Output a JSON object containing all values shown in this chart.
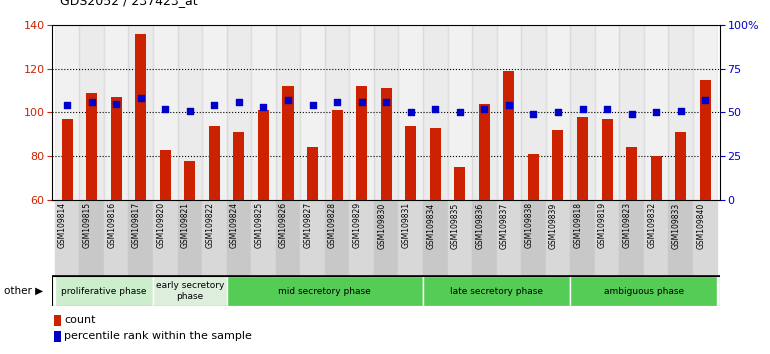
{
  "title": "GDS2052 / 237423_at",
  "samples": [
    "GSM109814",
    "GSM109815",
    "GSM109816",
    "GSM109817",
    "GSM109820",
    "GSM109821",
    "GSM109822",
    "GSM109824",
    "GSM109825",
    "GSM109826",
    "GSM109827",
    "GSM109828",
    "GSM109829",
    "GSM109830",
    "GSM109831",
    "GSM109834",
    "GSM109835",
    "GSM109836",
    "GSM109837",
    "GSM109838",
    "GSM109839",
    "GSM109818",
    "GSM109819",
    "GSM109823",
    "GSM109832",
    "GSM109833",
    "GSM109840"
  ],
  "counts": [
    97,
    109,
    107,
    136,
    83,
    78,
    94,
    91,
    101,
    112,
    84,
    101,
    112,
    111,
    94,
    93,
    75,
    104,
    119,
    81,
    92,
    98,
    97,
    84,
    80,
    91,
    115
  ],
  "percentiles": [
    54,
    56,
    55,
    58,
    52,
    51,
    54,
    56,
    53,
    57,
    54,
    56,
    56,
    56,
    50,
    52,
    50,
    52,
    54,
    49,
    50,
    52,
    52,
    49,
    50,
    51,
    57
  ],
  "bar_color": "#cc2200",
  "dot_color": "#0000cc",
  "ylim_left": [
    60,
    140
  ],
  "ylim_right": [
    0,
    100
  ],
  "yticks_left": [
    60,
    80,
    100,
    120,
    140
  ],
  "yticks_right": [
    0,
    25,
    50,
    75,
    100
  ],
  "grid_lines": [
    80,
    100,
    120
  ],
  "chart_bg": "#ffffff",
  "xlabel_bg_even": "#d8d8d8",
  "xlabel_bg_odd": "#c8c8c8",
  "phase_colors": [
    "#cceecc",
    "#ddeedd",
    "#55cc55",
    "#55cc55",
    "#55cc55"
  ],
  "phase_labels": [
    "proliferative phase",
    "early secretory\nphase",
    "mid secretory phase",
    "late secretory phase",
    "ambiguous phase"
  ],
  "phase_starts": [
    0,
    4,
    7,
    15,
    21
  ],
  "phase_ends": [
    4,
    7,
    15,
    21,
    27
  ]
}
